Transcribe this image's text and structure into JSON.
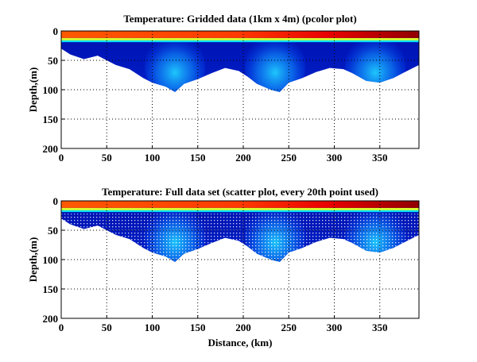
{
  "chart_data": [
    {
      "type": "heatmap",
      "title": "Temperature: Gridded data (1km x 4m) (pcolor plot)",
      "xlabel": "",
      "ylabel": "Depth,(m)",
      "xlim": [
        0,
        393
      ],
      "ylim": [
        200,
        0
      ],
      "xticks": [
        0,
        50,
        100,
        150,
        200,
        250,
        300,
        350
      ],
      "yticks": [
        0,
        50,
        100,
        150,
        200
      ],
      "grid": true,
      "colormap": [
        "#00008f",
        "#0000ff",
        "#00ffff",
        "#ffff00",
        "#ff0000",
        "#800000"
      ],
      "bottom_depth_m": {
        "x": [
          0,
          10,
          25,
          40,
          50,
          60,
          75,
          90,
          100,
          115,
          125,
          135,
          150,
          165,
          180,
          195,
          205,
          215,
          230,
          240,
          250,
          265,
          280,
          295,
          310,
          320,
          335,
          350,
          365,
          380,
          393
        ],
        "depth": [
          30,
          40,
          48,
          42,
          50,
          58,
          65,
          80,
          88,
          95,
          104,
          90,
          82,
          72,
          63,
          68,
          78,
          90,
          100,
          104,
          88,
          80,
          70,
          63,
          65,
          72,
          85,
          88,
          80,
          68,
          58
        ]
      },
      "surface_layer_depth_m": 15,
      "plume_centers_km": [
        125,
        235,
        345
      ]
    },
    {
      "type": "scatter",
      "title": "Temperature: Full data set (scatter plot, every 20th point used)",
      "xlabel": "Distance, (km)",
      "ylabel": "Depth,(m)",
      "xlim": [
        0,
        393
      ],
      "ylim": [
        200,
        0
      ],
      "xticks": [
        0,
        50,
        100,
        150,
        200,
        250,
        300,
        350
      ],
      "yticks": [
        0,
        50,
        100,
        150,
        200
      ],
      "grid": true
    }
  ]
}
